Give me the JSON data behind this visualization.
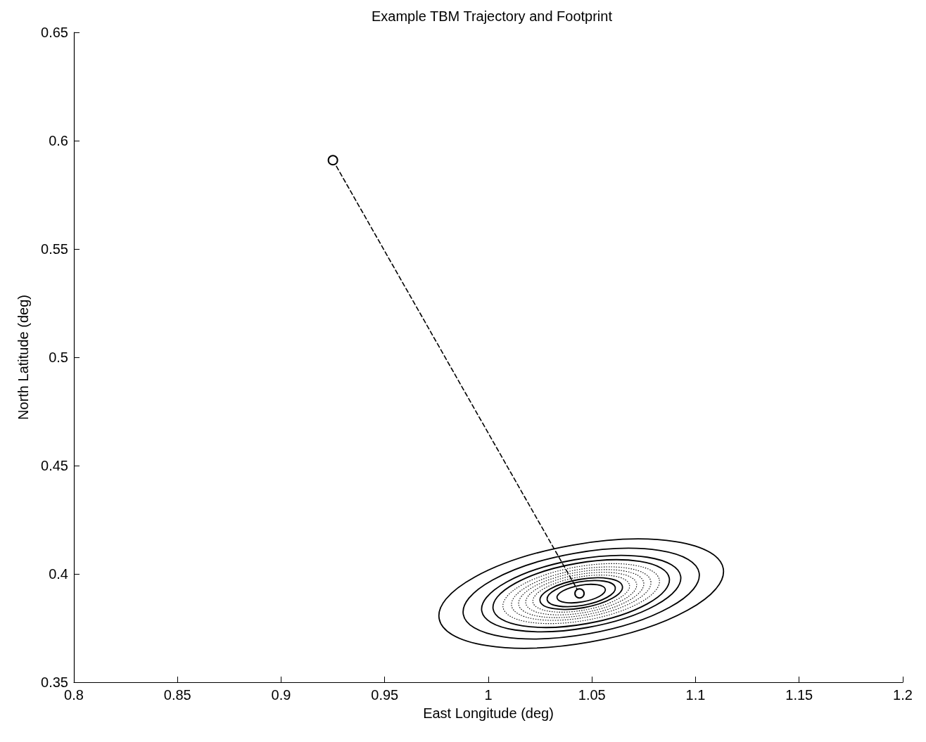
{
  "chart_data": {
    "type": "line",
    "title": "Example TBM Trajectory and Footprint",
    "xlabel": "East Longitude (deg)",
    "ylabel": "North Latitude (deg)",
    "xlim": [
      0.8,
      1.2
    ],
    "xticks": [
      0.8,
      0.85,
      0.9,
      0.95,
      1,
      1.05,
      1.1,
      1.15,
      1.2
    ],
    "ylim": [
      0.35,
      0.65
    ],
    "yticks": [
      0.35,
      0.4,
      0.45,
      0.5,
      0.55,
      0.6,
      0.65
    ],
    "grid": false,
    "series": [
      {
        "color": "#000000",
        "line_style": "dashed",
        "marker": "circle",
        "x": [
          0.925,
          1.044
        ],
        "values": [
          0.591,
          0.391
        ]
      }
    ]
  }
}
